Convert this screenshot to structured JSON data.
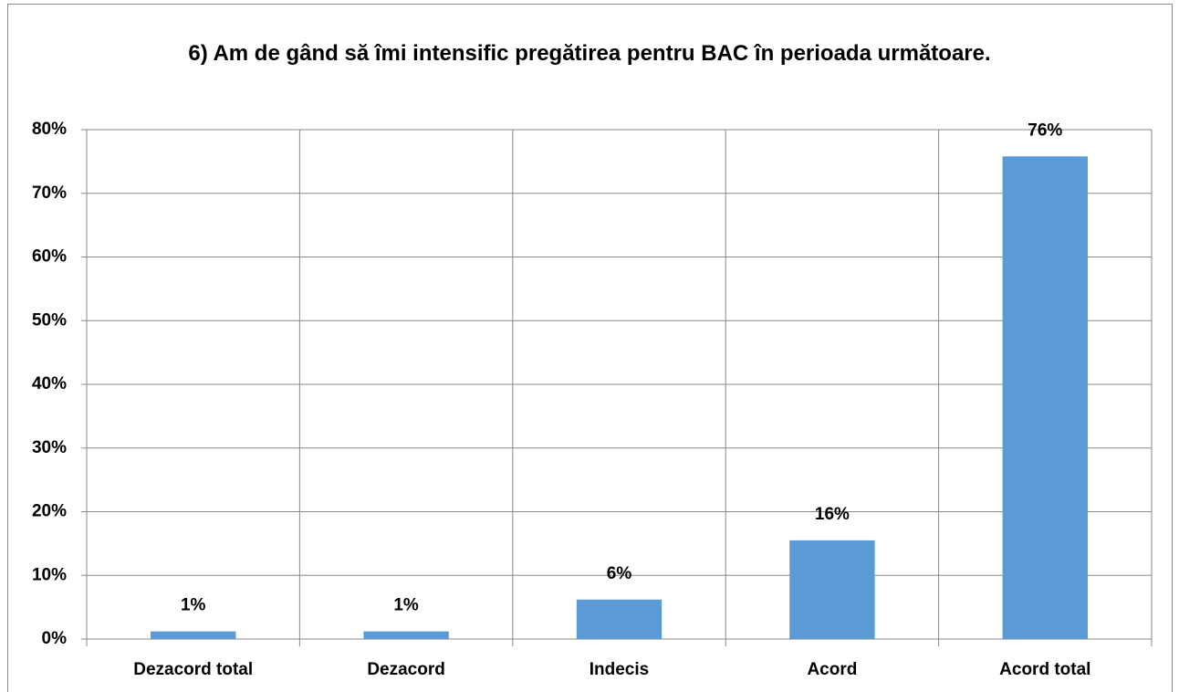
{
  "chart_data": {
    "type": "bar",
    "title": "6) Am de gând să îmi intensific pregătirea pentru BAC în perioada următoare.",
    "categories": [
      "Dezacord total",
      "Dezacord",
      "Indecis",
      "Acord",
      "Acord total"
    ],
    "values": [
      1.2,
      1.2,
      6.2,
      15.5,
      75.8
    ],
    "value_labels": [
      "1%",
      "1%",
      "6%",
      "16%",
      "76%"
    ],
    "color": "#5b9bd5",
    "ylim": [
      0,
      80
    ],
    "yticks": [
      {
        "value": 0,
        "label": "0%"
      },
      {
        "value": 10,
        "label": "10%"
      },
      {
        "value": 20,
        "label": "20%"
      },
      {
        "value": 30,
        "label": "30%"
      },
      {
        "value": 40,
        "label": "40%"
      },
      {
        "value": 50,
        "label": "50%"
      },
      {
        "value": 60,
        "label": "60%"
      },
      {
        "value": 70,
        "label": "70%"
      },
      {
        "value": 80,
        "label": "80%"
      }
    ],
    "grid": true
  }
}
